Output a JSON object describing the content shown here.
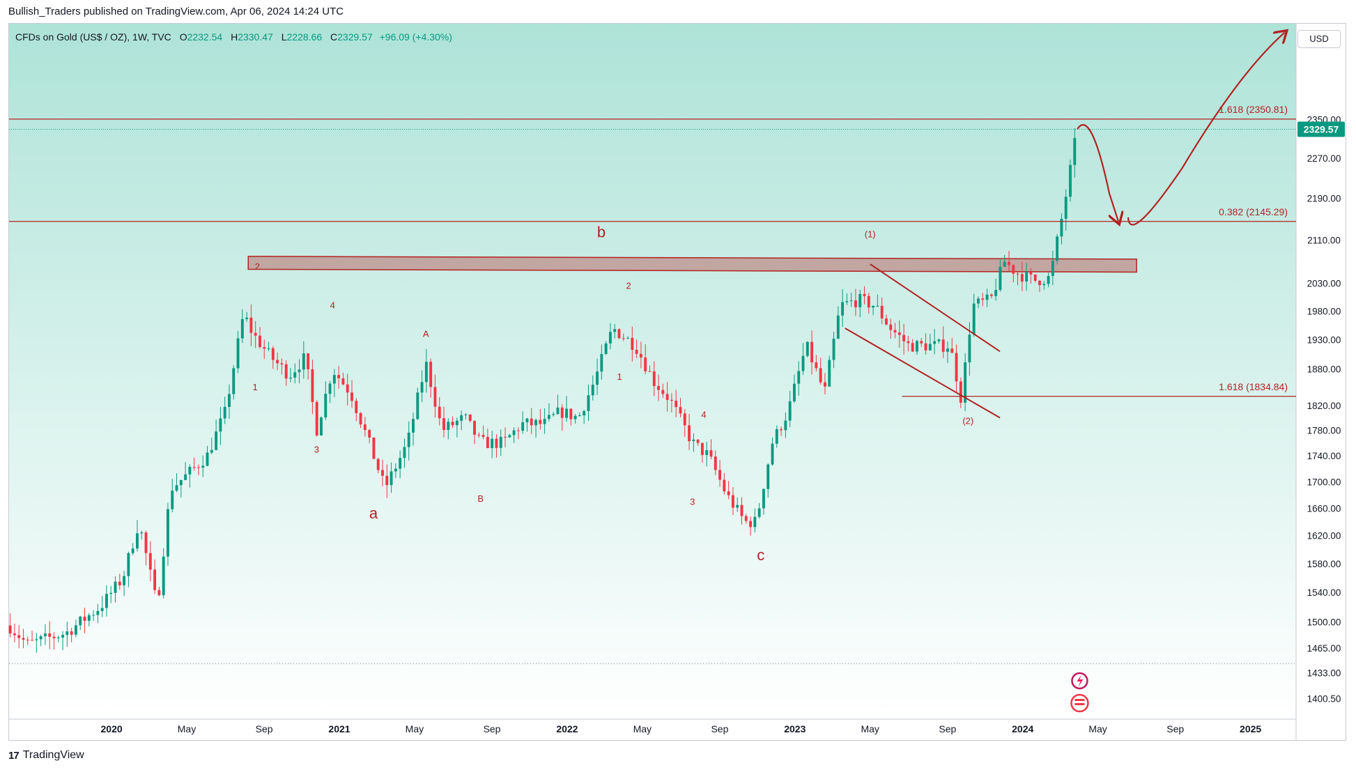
{
  "header": {
    "publisher_line": "Bullish_Traders published on TradingView.com, Apr 06, 2024 14:24 UTC"
  },
  "legend": {
    "symbol": "CFDs on Gold (US$ / OZ), 1W, TVC",
    "open_label": "O",
    "open": "2232.54",
    "high_label": "H",
    "high": "2330.47",
    "low_label": "L",
    "low": "2228.66",
    "close_label": "C",
    "close": "2329.57",
    "change": "+96.09 (+4.30%)"
  },
  "currency": "USD",
  "footer": {
    "brand": "TradingView",
    "logo_text": "17"
  },
  "colors": {
    "up": "#089981",
    "down": "#f23645",
    "annotation": "#b22222",
    "bg_top": "#aee3d8",
    "bg_bottom": "#ffffff"
  },
  "chart_data": {
    "type": "candlestick",
    "title": "CFDs on Gold (US$ / OZ), 1W, TVC",
    "price_axis_log": true,
    "ylim": [
      1375,
      2560
    ],
    "xlim": [
      2019.55,
      2025.2
    ],
    "y_ticks": [
      "2350.00",
      "2270.00",
      "2190.00",
      "2110.00",
      "2030.00",
      "1980.00",
      "1930.00",
      "1880.00",
      "1820.00",
      "1780.00",
      "1740.00",
      "1700.00",
      "1660.00",
      "1620.00",
      "1580.00",
      "1540.00",
      "1500.00",
      "1465.00",
      "1433.00",
      "1400.50"
    ],
    "current_price_label": "2329.57",
    "current_price": 2329.57,
    "x_ticks": [
      {
        "label": "2020",
        "t": 2020.0,
        "bold": true
      },
      {
        "label": "May",
        "t": 2020.33,
        "bold": false
      },
      {
        "label": "Sep",
        "t": 2020.67,
        "bold": false
      },
      {
        "label": "2021",
        "t": 2021.0,
        "bold": true
      },
      {
        "label": "May",
        "t": 2021.33,
        "bold": false
      },
      {
        "label": "Sep",
        "t": 2021.67,
        "bold": false
      },
      {
        "label": "2022",
        "t": 2022.0,
        "bold": true
      },
      {
        "label": "May",
        "t": 2022.33,
        "bold": false
      },
      {
        "label": "Sep",
        "t": 2022.67,
        "bold": false
      },
      {
        "label": "2023",
        "t": 2023.0,
        "bold": true
      },
      {
        "label": "May",
        "t": 2023.33,
        "bold": false
      },
      {
        "label": "Sep",
        "t": 2023.67,
        "bold": false
      },
      {
        "label": "2024",
        "t": 2024.0,
        "bold": true
      },
      {
        "label": "May",
        "t": 2024.33,
        "bold": false
      },
      {
        "label": "Sep",
        "t": 2024.67,
        "bold": false
      },
      {
        "label": "2025",
        "t": 2025.0,
        "bold": true
      }
    ],
    "price_path": [
      [
        2019.55,
        1495
      ],
      [
        2019.63,
        1470
      ],
      [
        2019.8,
        1485
      ],
      [
        2019.95,
        1520
      ],
      [
        2020.05,
        1560
      ],
      [
        2020.12,
        1640
      ],
      [
        2020.2,
        1520
      ],
      [
        2020.26,
        1690
      ],
      [
        2020.33,
        1710
      ],
      [
        2020.42,
        1740
      ],
      [
        2020.5,
        1810
      ],
      [
        2020.58,
        1975
      ],
      [
        2020.62,
        1940
      ],
      [
        2020.7,
        1900
      ],
      [
        2020.78,
        1870
      ],
      [
        2020.85,
        1900
      ],
      [
        2020.9,
        1780
      ],
      [
        2020.97,
        1880
      ],
      [
        2021.05,
        1840
      ],
      [
        2021.12,
        1770
      ],
      [
        2021.2,
        1690
      ],
      [
        2021.3,
        1760
      ],
      [
        2021.38,
        1890
      ],
      [
        2021.45,
        1780
      ],
      [
        2021.55,
        1800
      ],
      [
        2021.62,
        1760
      ],
      [
        2021.72,
        1760
      ],
      [
        2021.8,
        1790
      ],
      [
        2021.9,
        1790
      ],
      [
        2021.97,
        1810
      ],
      [
        2022.05,
        1800
      ],
      [
        2022.12,
        1860
      ],
      [
        2022.2,
        1950
      ],
      [
        2022.3,
        1920
      ],
      [
        2022.38,
        1860
      ],
      [
        2022.45,
        1830
      ],
      [
        2022.55,
        1760
      ],
      [
        2022.62,
        1740
      ],
      [
        2022.7,
        1680
      ],
      [
        2022.78,
        1640
      ],
      [
        2022.83,
        1640
      ],
      [
        2022.9,
        1760
      ],
      [
        2022.97,
        1810
      ],
      [
        2023.05,
        1920
      ],
      [
        2023.13,
        1840
      ],
      [
        2023.2,
        1990
      ],
      [
        2023.28,
        2000
      ],
      [
        2023.35,
        1990
      ],
      [
        2023.42,
        1950
      ],
      [
        2023.5,
        1920
      ],
      [
        2023.58,
        1920
      ],
      [
        2023.68,
        1920
      ],
      [
        2023.73,
        1830
      ],
      [
        2023.78,
        1990
      ],
      [
        2023.86,
        2000
      ],
      [
        2023.92,
        2070
      ],
      [
        2023.97,
        2050
      ],
      [
        2024.05,
        2035
      ],
      [
        2024.12,
        2040
      ],
      [
        2024.18,
        2170
      ],
      [
        2024.24,
        2330
      ]
    ],
    "horizontal_levels": [
      {
        "label": "1.618 (2350.81)",
        "price": 2350.81,
        "from": 2019.55,
        "to": 2025.2
      },
      {
        "label": "0.382 (2145.29)",
        "price": 2145.29,
        "from": 2019.55,
        "to": 2025.2
      },
      {
        "label": "1.618 (1834.84)",
        "price": 1834.84,
        "from": 2023.47,
        "to": 2025.2
      }
    ],
    "resistance_zone": {
      "t1": 2020.6,
      "t2": 2024.5,
      "price_low": 2058,
      "price_high": 2082
    },
    "channel": [
      {
        "t1": 2023.33,
        "p1": 2065,
        "t2": 2023.9,
        "p2": 1910
      },
      {
        "t1": 2023.22,
        "p1": 1950,
        "t2": 2023.9,
        "p2": 1800
      }
    ],
    "wave_labels": [
      {
        "text": "b",
        "t": 2022.15,
        "price": 2115,
        "size": "large"
      },
      {
        "text": "a",
        "t": 2021.15,
        "price": 1645,
        "size": "large"
      },
      {
        "text": "c",
        "t": 2022.85,
        "price": 1585,
        "size": "large"
      },
      {
        "text": "(1)",
        "t": 2023.33,
        "price": 2115,
        "size": "small"
      },
      {
        "text": "(2)",
        "t": 2023.76,
        "price": 1790,
        "size": "small"
      },
      {
        "text": "1",
        "t": 2020.63,
        "price": 1845,
        "size": "small"
      },
      {
        "text": "2",
        "t": 2020.64,
        "price": 2055,
        "size": "small"
      },
      {
        "text": "3",
        "t": 2020.9,
        "price": 1745,
        "size": "small"
      },
      {
        "text": "4",
        "t": 2020.97,
        "price": 1985,
        "size": "small"
      },
      {
        "text": "A",
        "t": 2021.38,
        "price": 1935,
        "size": "small"
      },
      {
        "text": "B",
        "t": 2021.62,
        "price": 1670,
        "size": "small"
      },
      {
        "text": "1",
        "t": 2022.23,
        "price": 1862,
        "size": "small"
      },
      {
        "text": "2",
        "t": 2022.27,
        "price": 2020,
        "size": "small"
      },
      {
        "text": "3",
        "t": 2022.55,
        "price": 1665,
        "size": "small"
      },
      {
        "text": "4",
        "t": 2022.6,
        "price": 1800,
        "size": "small"
      }
    ],
    "projection_path": [
      {
        "t": 2024.24,
        "price": 2330
      },
      {
        "t": 2024.3,
        "price": 2345
      },
      {
        "t": 2024.38,
        "price": 2200
      },
      {
        "t": 2024.42,
        "price": 2145
      },
      {
        "t": 2024.47,
        "price": 2140
      },
      {
        "t": 2024.7,
        "price": 2250
      },
      {
        "t": 2024.95,
        "price": 2450
      },
      {
        "t": 2025.15,
        "price": 2540
      }
    ]
  }
}
